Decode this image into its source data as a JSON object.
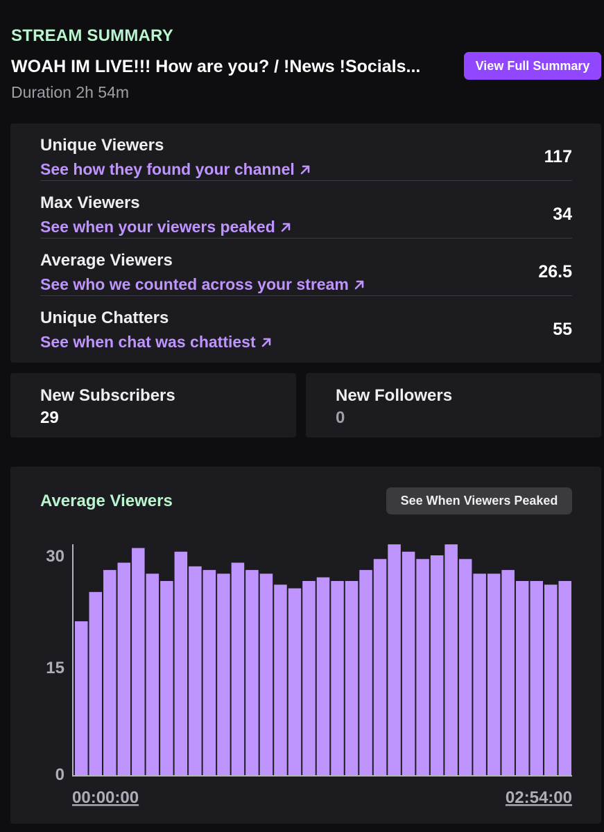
{
  "header": {
    "kicker": "STREAM SUMMARY",
    "stream_title": "WOAH IM LIVE!!! How are you? / !News !Socials...",
    "duration": "Duration 2h 54m",
    "full_summary_button": "View Full Summary"
  },
  "stats": [
    {
      "label": "Unique Viewers",
      "link": "See how they found your channel",
      "value": "117"
    },
    {
      "label": "Max Viewers",
      "link": "See when your viewers peaked",
      "value": "34"
    },
    {
      "label": "Average Viewers",
      "link": "See who we counted across your stream",
      "value": "26.5"
    },
    {
      "label": "Unique Chatters",
      "link": "See when chat was chattiest",
      "value": "55"
    }
  ],
  "subscribers": {
    "label": "New Subscribers",
    "value": "29"
  },
  "followers": {
    "label": "New Followers",
    "value": "0"
  },
  "chart_section": {
    "title": "Average Viewers",
    "peak_button": "See When Viewers Peaked"
  },
  "colors": {
    "accent": "#9146ff",
    "link": "#bf94ff",
    "bar": "#bf94ff",
    "mint": "#b9f5cf",
    "zero_value": "#9f9fa8"
  },
  "icons": {
    "external_link": "arrow-up-right-icon"
  },
  "chart_data": {
    "type": "bar",
    "title": "Average Viewers",
    "ylim": [
      0,
      30
    ],
    "yticks": [
      "0",
      "15",
      "30"
    ],
    "x_start_label": "00:00:00",
    "x_end_label": "02:54:00",
    "grid": false,
    "values": [
      21,
      25,
      28,
      29,
      31,
      27.5,
      26.5,
      30.5,
      28.5,
      28,
      27.5,
      29,
      28,
      27.5,
      26,
      25.5,
      26.5,
      27,
      26.5,
      26.5,
      28,
      29.5,
      31.5,
      30.5,
      29.5,
      30,
      31.5,
      29.5,
      27.5,
      27.5,
      28,
      26.5,
      26.5,
      26,
      26.5
    ]
  }
}
